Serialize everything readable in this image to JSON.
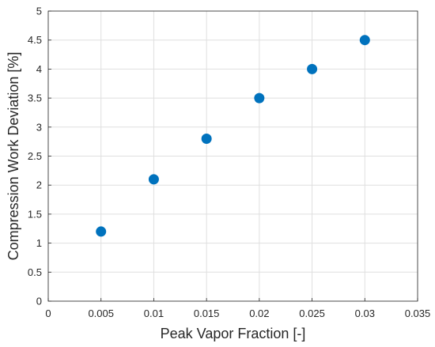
{
  "chart_data": {
    "type": "scatter",
    "title": "",
    "xlabel": "Peak Vapor Fraction [-]",
    "ylabel": "Compression Work Deviation [%]",
    "xlim": [
      0,
      0.035
    ],
    "ylim": [
      0,
      5
    ],
    "xticks": [
      "0",
      "0.005",
      "0.01",
      "0.015",
      "0.02",
      "0.025",
      "0.03",
      "0.035"
    ],
    "yticks": [
      "0",
      "0.5",
      "1",
      "1.5",
      "2",
      "2.5",
      "3",
      "3.5",
      "4",
      "4.5",
      "5"
    ],
    "grid": true,
    "series": [
      {
        "color": "#0072BD",
        "points": [
          {
            "x": 0.005,
            "y": 1.2
          },
          {
            "x": 0.01,
            "y": 2.1
          },
          {
            "x": 0.015,
            "y": 2.8
          },
          {
            "x": 0.02,
            "y": 3.5
          },
          {
            "x": 0.025,
            "y": 4.0
          },
          {
            "x": 0.03,
            "y": 4.5
          }
        ]
      }
    ]
  }
}
